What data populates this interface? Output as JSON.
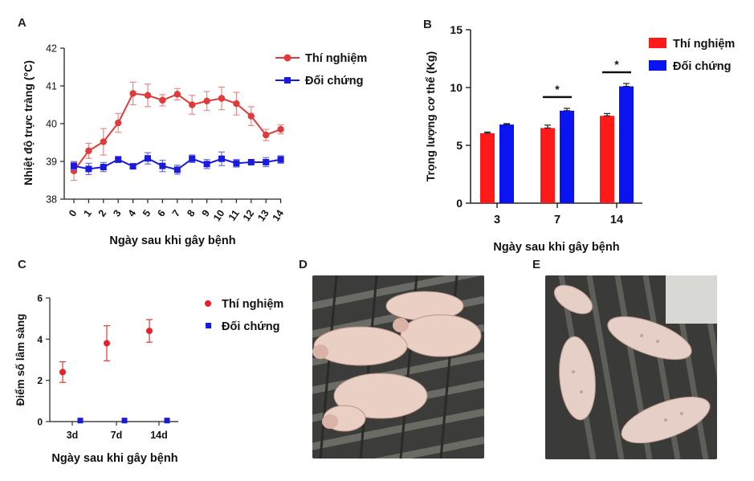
{
  "panels": {
    "a": "A",
    "b": "B",
    "c": "C",
    "d": "D",
    "e": "E"
  },
  "colors": {
    "experimental": "#e03a3a",
    "experimental_bar": "#ff1a1a",
    "control": "#1a1adc",
    "control_bar": "#0a14f0",
    "axis": "#222222"
  },
  "chart_data": [
    {
      "id": "A",
      "type": "line",
      "title": "",
      "xlabel": "Ngày sau khi gây bệnh",
      "ylabel": "Nhiệt độ trực tràng (°C)",
      "x": [
        0,
        1,
        2,
        3,
        4,
        5,
        6,
        7,
        8,
        9,
        10,
        11,
        12,
        13,
        14
      ],
      "x_ticks": [
        "0",
        "1",
        "2",
        "3",
        "4",
        "5",
        "6",
        "7",
        "8",
        "9",
        "10",
        "11",
        "12",
        "13",
        "14"
      ],
      "ylim": [
        38,
        42
      ],
      "y_ticks": [
        "38",
        "39",
        "40",
        "41",
        "42"
      ],
      "series": [
        {
          "name": "Thí nghiệm",
          "marker": "circle",
          "values": [
            38.75,
            39.28,
            39.52,
            40.02,
            40.8,
            40.75,
            40.62,
            40.78,
            40.5,
            40.6,
            40.67,
            40.53,
            40.2,
            39.7,
            39.85
          ],
          "errors": [
            0.25,
            0.2,
            0.35,
            0.25,
            0.3,
            0.3,
            0.15,
            0.15,
            0.25,
            0.25,
            0.3,
            0.3,
            0.25,
            0.15,
            0.12
          ]
        },
        {
          "name": "Đối chứng",
          "marker": "square",
          "values": [
            38.88,
            38.8,
            38.85,
            39.05,
            38.87,
            39.08,
            38.88,
            38.78,
            39.07,
            38.93,
            39.07,
            38.95,
            38.98,
            38.98,
            39.05
          ],
          "errors": [
            0.1,
            0.15,
            0.12,
            0.08,
            0.05,
            0.15,
            0.15,
            0.12,
            0.1,
            0.12,
            0.18,
            0.1,
            0.05,
            0.12,
            0.1
          ]
        }
      ],
      "legend_position": "top-right"
    },
    {
      "id": "B",
      "type": "bar",
      "xlabel": "Ngày sau khi gây bệnh",
      "ylabel": "Trọng lượng cơ thể (Kg)",
      "categories": [
        "3",
        "7",
        "14"
      ],
      "ylim": [
        0,
        15
      ],
      "y_ticks": [
        "0",
        "5",
        "10",
        "15"
      ],
      "series": [
        {
          "name": "Thí nghiệm",
          "values": [
            6.05,
            6.5,
            7.55
          ],
          "errors": [
            0.1,
            0.25,
            0.2
          ]
        },
        {
          "name": "Đối chứng",
          "values": [
            6.8,
            8.0,
            10.1
          ],
          "errors": [
            0.08,
            0.2,
            0.25
          ]
        }
      ],
      "significance": [
        {
          "category": "7",
          "label": "*"
        },
        {
          "category": "14",
          "label": "*"
        }
      ],
      "legend_position": "top-right"
    },
    {
      "id": "C",
      "type": "scatter",
      "xlabel": "Ngày sau khi gây bệnh",
      "ylabel": "Điểm số lâm sàng",
      "categories": [
        "3d",
        "7d",
        "14d"
      ],
      "ylim": [
        0,
        6
      ],
      "y_ticks": [
        "0",
        "2",
        "4",
        "6"
      ],
      "series": [
        {
          "name": "Thí nghiệm",
          "marker": "circle",
          "values": [
            2.4,
            3.8,
            4.4
          ],
          "errors": [
            0.5,
            0.85,
            0.55
          ]
        },
        {
          "name": "Đối chứng",
          "marker": "square",
          "values": [
            0.05,
            0.05,
            0.05
          ],
          "errors": [
            0,
            0,
            0
          ]
        }
      ],
      "legend_position": "right"
    }
  ]
}
